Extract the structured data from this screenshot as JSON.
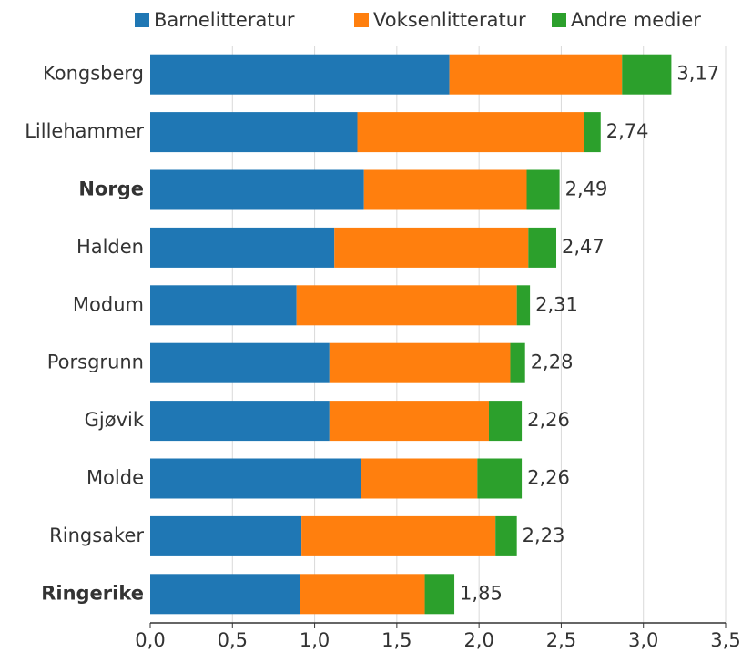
{
  "chart_data": {
    "type": "stacked_barh",
    "categories": [
      "Kongsberg",
      "Lillehammer",
      "Norge",
      "Halden",
      "Modum",
      "Porsgrunn",
      "Gjøvik",
      "Molde",
      "Ringsaker",
      "Ringerike"
    ],
    "highlight_categories": [
      "Norge",
      "Ringerike"
    ],
    "series": [
      {
        "name": "Barnelitteratur",
        "color": "#1f77b4",
        "values": [
          1.82,
          1.26,
          1.3,
          1.12,
          0.89,
          1.09,
          1.09,
          1.28,
          0.92,
          0.91
        ]
      },
      {
        "name": "Voksenlitteratur",
        "color": "#ff7f0e",
        "values": [
          1.05,
          1.38,
          0.99,
          1.18,
          1.34,
          1.1,
          0.97,
          0.71,
          1.18,
          0.76
        ]
      },
      {
        "name": "Andre medier",
        "color": "#2ca02c",
        "values": [
          0.3,
          0.1,
          0.2,
          0.17,
          0.08,
          0.09,
          0.2,
          0.27,
          0.13,
          0.18
        ]
      }
    ],
    "totals": [
      3.17,
      2.74,
      2.49,
      2.47,
      2.31,
      2.28,
      2.26,
      2.26,
      2.23,
      1.85
    ],
    "total_labels": [
      "3,17",
      "2,74",
      "2,49",
      "2,47",
      "2,31",
      "2,28",
      "2,26",
      "2,26",
      "2,23",
      "1,85"
    ],
    "xlim": [
      0,
      3.5
    ],
    "xticks": [
      {
        "value": 0,
        "label": "0,0"
      },
      {
        "value": 0.5,
        "label": "0,5"
      },
      {
        "value": 1,
        "label": "1,0"
      },
      {
        "value": 1.5,
        "label": "1,5"
      },
      {
        "value": 2,
        "label": "2,0"
      },
      {
        "value": 2.5,
        "label": "2,5"
      },
      {
        "value": 3,
        "label": "3,0"
      },
      {
        "value": 3.5,
        "label": "3,5"
      }
    ],
    "grid": true,
    "legend": "top"
  }
}
